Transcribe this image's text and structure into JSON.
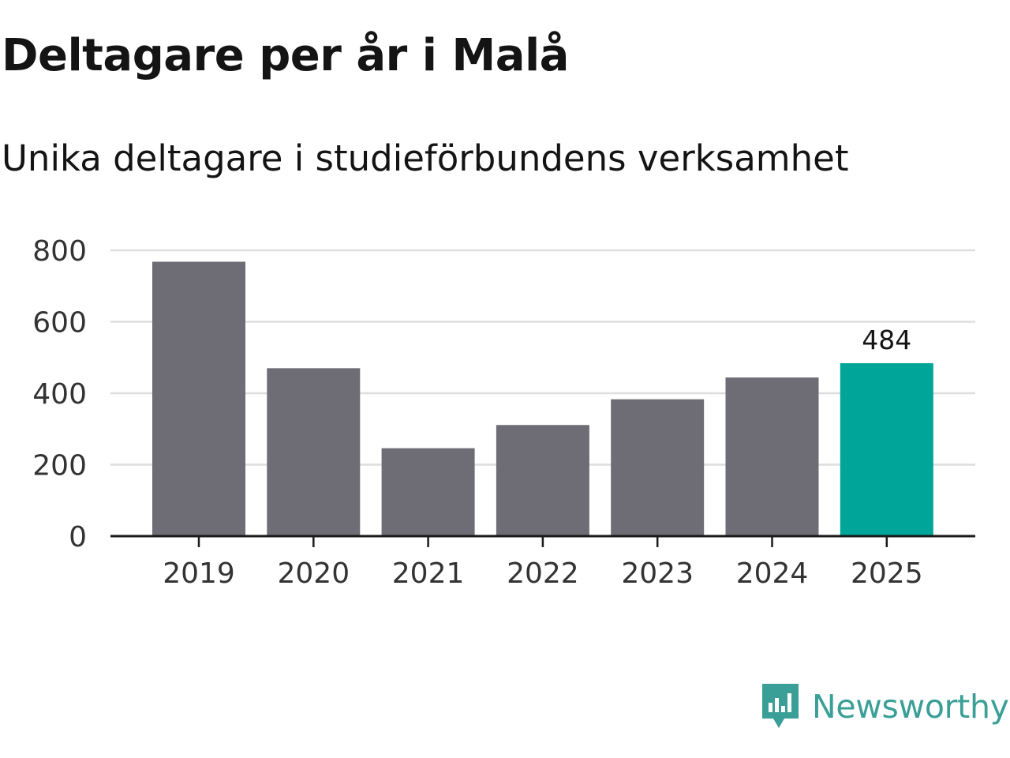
{
  "title": "Deltagare per år i Malå",
  "subtitle": "Unika deltagare i studieförbundens verksamhet",
  "chart_data": {
    "type": "bar",
    "categories": [
      "2019",
      "2020",
      "2021",
      "2022",
      "2023",
      "2024",
      "2025"
    ],
    "values": [
      768,
      470,
      246,
      311,
      383,
      444,
      484
    ],
    "highlight_index": 6,
    "data_labels": [
      {
        "index": 6,
        "text": "484"
      }
    ],
    "y_ticks": [
      0,
      200,
      400,
      600,
      800
    ],
    "ylim": [
      0,
      800
    ],
    "grid": true,
    "colors": {
      "bar": "#6e6d75",
      "highlight": "#00a59a",
      "grid": "#dedede",
      "axis": "#1a1a1a",
      "tick_text": "#333333"
    }
  },
  "logo": {
    "text": "Newsworthy",
    "icon": "newsworthy-chart-icon",
    "color": "#3a9f96"
  }
}
